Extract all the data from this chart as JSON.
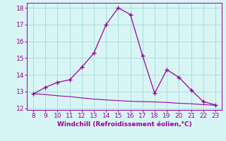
{
  "x_main": [
    8,
    9,
    10,
    11,
    12,
    13,
    14,
    15,
    16,
    17,
    18,
    19,
    20,
    21,
    22,
    23
  ],
  "y_main": [
    12.85,
    13.25,
    13.55,
    13.7,
    14.45,
    15.3,
    17.0,
    18.0,
    17.6,
    15.15,
    12.9,
    14.3,
    13.85,
    13.1,
    12.4,
    12.2
  ],
  "x_flat": [
    8,
    9,
    10,
    11,
    12,
    13,
    14,
    15,
    16,
    17,
    18,
    19,
    20,
    21,
    22,
    23
  ],
  "y_flat": [
    12.88,
    12.82,
    12.75,
    12.7,
    12.62,
    12.55,
    12.5,
    12.46,
    12.42,
    12.4,
    12.38,
    12.35,
    12.3,
    12.27,
    12.22,
    12.18
  ],
  "line_color": "#990099",
  "bg_color": "#d8f5f5",
  "grid_color": "#aadddd",
  "xlabel": "Windchill (Refroidissement éolien,°C)",
  "xlim": [
    7.5,
    23.5
  ],
  "ylim": [
    11.9,
    18.3
  ],
  "xticks": [
    8,
    9,
    10,
    11,
    12,
    13,
    14,
    15,
    16,
    17,
    18,
    19,
    20,
    21,
    22,
    23
  ],
  "yticks": [
    12,
    13,
    14,
    15,
    16,
    17,
    18
  ],
  "tick_color": "#990099",
  "label_color": "#990099",
  "font_size": 6.5,
  "marker": "+",
  "marker_size": 5,
  "linewidth_main": 0.9,
  "linewidth_flat": 0.8
}
